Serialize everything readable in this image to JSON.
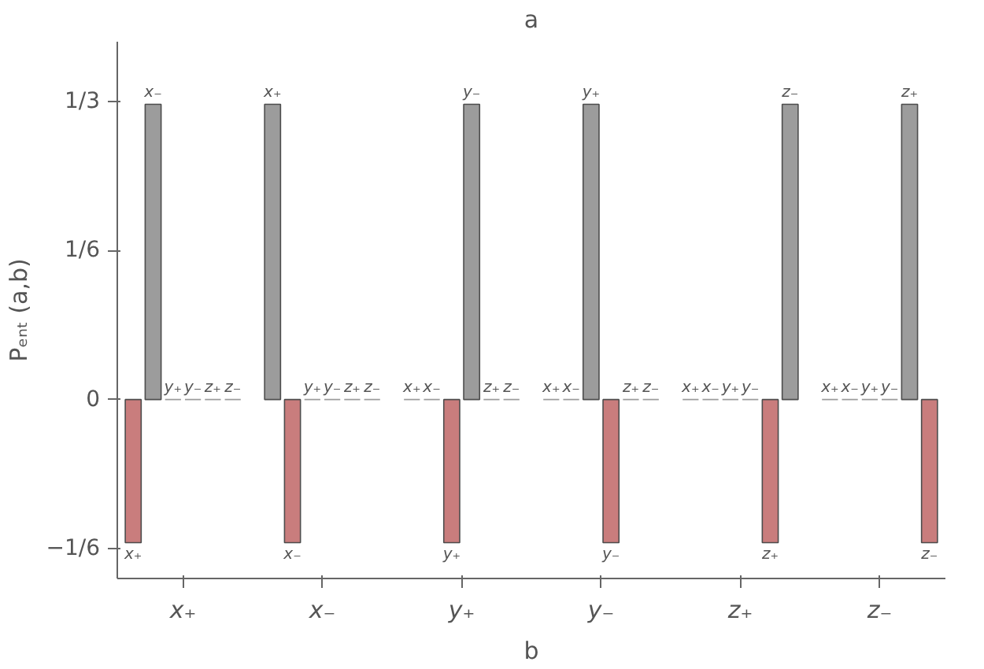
{
  "chart_data": {
    "type": "bar",
    "categories": [
      "x₊",
      "x₋",
      "y₊",
      "y₋",
      "z₊",
      "z₋"
    ],
    "xlabel": "b",
    "x2label": "a",
    "ylabel": "Pₑₙₜ (a,b)",
    "series": [
      {
        "name": "x₊",
        "values": [
          -0.16,
          0.33,
          0,
          0,
          0,
          0
        ],
        "colors": [
          "#c97d7d",
          "#9c9c9c",
          "#9c9c9c",
          "#9c9c9c",
          "#9c9c9c",
          "#9c9c9c"
        ]
      },
      {
        "name": "x₋",
        "values": [
          0.33,
          -0.16,
          0,
          0,
          0,
          0
        ],
        "colors": [
          "#9c9c9c",
          "#c97d7d",
          "#9c9c9c",
          "#9c9c9c",
          "#9c9c9c",
          "#9c9c9c"
        ]
      },
      {
        "name": "y₊",
        "values": [
          0,
          0,
          -0.16,
          0.33,
          0,
          0
        ],
        "colors": [
          "#9c9c9c",
          "#9c9c9c",
          "#c97d7d",
          "#9c9c9c",
          "#9c9c9c",
          "#9c9c9c"
        ]
      },
      {
        "name": "y₋",
        "values": [
          0,
          0,
          0.33,
          -0.16,
          0,
          0
        ],
        "colors": [
          "#9c9c9c",
          "#9c9c9c",
          "#9c9c9c",
          "#c97d7d",
          "#9c9c9c",
          "#9c9c9c"
        ]
      },
      {
        "name": "z₊",
        "values": [
          0,
          0,
          0,
          0,
          -0.16,
          0.33
        ],
        "colors": [
          "#9c9c9c",
          "#9c9c9c",
          "#9c9c9c",
          "#9c9c9c",
          "#c97d7d",
          "#9c9c9c"
        ]
      },
      {
        "name": "z₋",
        "values": [
          0,
          0,
          0,
          0,
          0.33,
          -0.16
        ],
        "colors": [
          "#9c9c9c",
          "#9c9c9c",
          "#9c9c9c",
          "#9c9c9c",
          "#9c9c9c",
          "#c97d7d"
        ]
      }
    ],
    "ylim": [
      -0.2,
      0.4
    ],
    "yticks": [
      {
        "value": -0.1667,
        "label": "−1/6"
      },
      0,
      {
        "value": 0.1667,
        "label": "1/6"
      },
      {
        "value": 0.3333,
        "label": "1/3"
      }
    ],
    "grid": false
  }
}
